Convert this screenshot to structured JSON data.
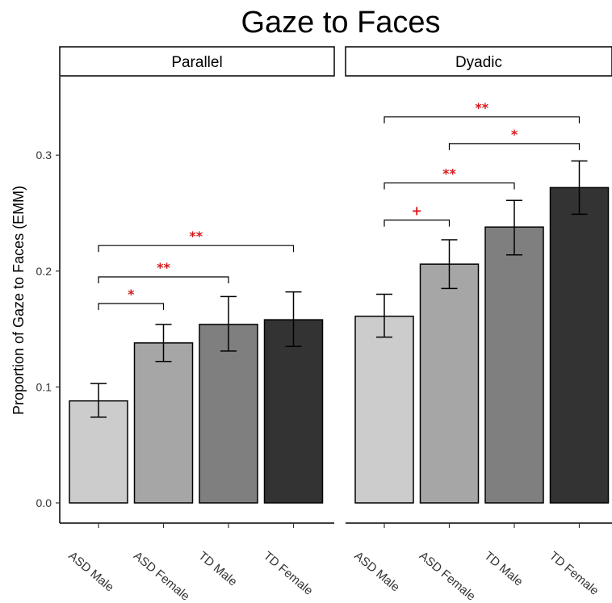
{
  "chart_data": {
    "type": "bar",
    "title": "Gaze to Faces",
    "ylabel": "Proportion of Gaze to Faces (EMM)",
    "xlabel": "",
    "ylim": [
      0,
      0.37
    ],
    "yticks": [
      "0.0",
      "0.1",
      "0.2",
      "0.3"
    ],
    "ytick_values": [
      0.0,
      0.1,
      0.2,
      0.3
    ],
    "categories": [
      "ASD Male",
      "ASD Female",
      "TD Male",
      "TD Female"
    ],
    "bar_colors": [
      "#cccccc",
      "#a6a6a6",
      "#7f7f7f",
      "#333333"
    ],
    "significance_color": "#d7191c",
    "panels": [
      {
        "name": "Parallel",
        "values": [
          0.088,
          0.138,
          0.154,
          0.158
        ],
        "error_low": [
          0.074,
          0.122,
          0.131,
          0.135
        ],
        "error_high": [
          0.103,
          0.154,
          0.178,
          0.182
        ],
        "comparisons": [
          {
            "from": 0,
            "to": 1,
            "label": "*",
            "y": 0.172
          },
          {
            "from": 0,
            "to": 2,
            "label": "**",
            "y": 0.195
          },
          {
            "from": 0,
            "to": 3,
            "label": "**",
            "y": 0.222
          }
        ]
      },
      {
        "name": "Dyadic",
        "values": [
          0.161,
          0.206,
          0.238,
          0.272
        ],
        "error_low": [
          0.143,
          0.185,
          0.214,
          0.249
        ],
        "error_high": [
          0.18,
          0.227,
          0.261,
          0.295
        ],
        "comparisons": [
          {
            "from": 0,
            "to": 1,
            "label": "+",
            "y": 0.244
          },
          {
            "from": 0,
            "to": 2,
            "label": "**",
            "y": 0.276
          },
          {
            "from": 1,
            "to": 3,
            "label": "*",
            "y": 0.31
          },
          {
            "from": 0,
            "to": 3,
            "label": "**",
            "y": 0.333
          }
        ]
      }
    ],
    "grid": false,
    "legend": "none"
  }
}
